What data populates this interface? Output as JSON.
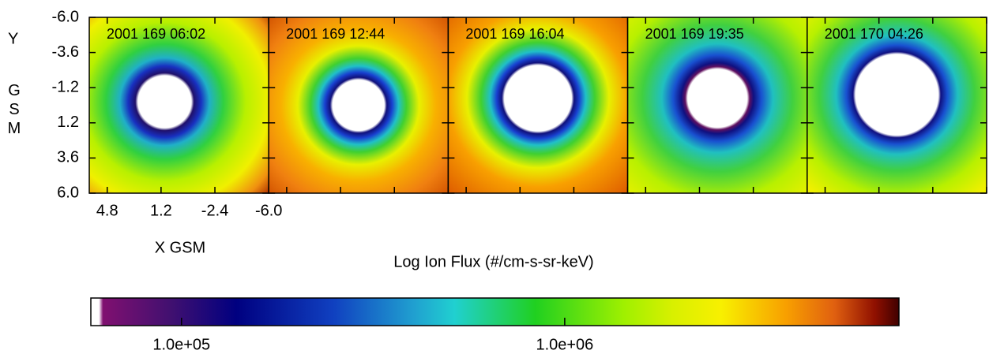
{
  "chart_data": {
    "type": "heatmap",
    "panel_titles": [
      "2001 169 06:02",
      "2001 169 12:44",
      "2001 169 16:04",
      "2001 169 19:35",
      "2001 170 04:26"
    ],
    "x_label": "X GSM",
    "y_label": "Y",
    "y_label_2": "GSM",
    "xlim": [
      6,
      -6
    ],
    "xticks": [
      4.8,
      1.2,
      -2.4,
      {
        "value": -6,
        "label": "-6.0"
      }
    ],
    "ylim": [
      -6,
      6
    ],
    "yticks": [
      {
        "value": -6,
        "label": "-6.0"
      },
      -3.6,
      -1.2,
      1.2,
      3.6,
      {
        "value": 6,
        "label": "6.0"
      }
    ],
    "colorbar": {
      "label": "Log Ion Flux (#/cm-s-sr-keV)",
      "log": true,
      "lim": [
        58000,
        7450000
      ],
      "ticks": [
        {
          "value": 100000,
          "label": "1.0e+05"
        },
        {
          "value": 1000000,
          "label": "1.0e+06"
        }
      ]
    }
  }
}
